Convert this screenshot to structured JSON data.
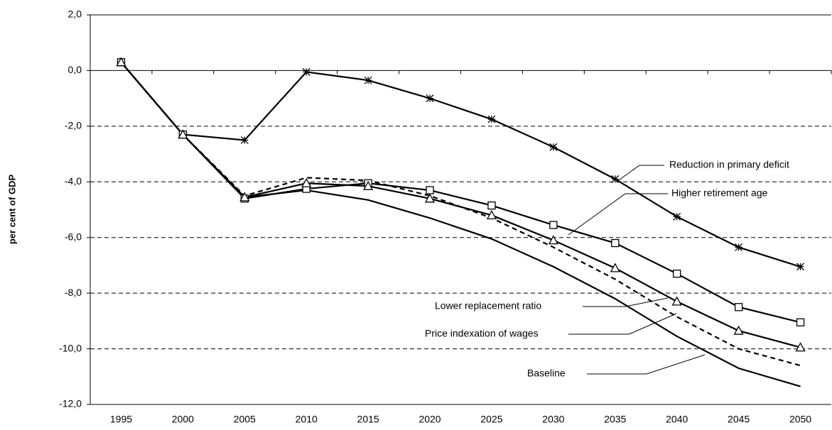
{
  "chart_data": {
    "type": "line",
    "y_label": "per cent of GDP",
    "categories": [
      "1995",
      "2000",
      "2005",
      "2010",
      "2015",
      "2020",
      "2025",
      "2030",
      "2035",
      "2040",
      "2045",
      "2050"
    ],
    "ylim": [
      -12,
      2
    ],
    "yticks": [
      {
        "value": -12,
        "label": "-12,0"
      },
      {
        "value": -10,
        "label": "-10,0"
      },
      {
        "value": -8,
        "label": "-8,0"
      },
      {
        "value": -6,
        "label": "-6,0"
      },
      {
        "value": -4,
        "label": "-4,0"
      },
      {
        "value": -2,
        "label": "-2,0"
      },
      {
        "value": 0,
        "label": "0,0"
      },
      {
        "value": 2,
        "label": "2,0"
      }
    ],
    "grid": true,
    "series": [
      {
        "name": "Reduction in primary deficit",
        "color": "#000000",
        "marker": "asterisk",
        "dashed": false,
        "values": [
          0.3,
          -2.3,
          -2.5,
          -0.05,
          -0.35,
          -1.0,
          -1.75,
          -2.75,
          -3.9,
          -5.25,
          -6.35,
          -7.05
        ]
      },
      {
        "name": "Higher retirement age",
        "color": "#000000",
        "marker": "square",
        "dashed": false,
        "values": [
          0.3,
          -2.3,
          -4.6,
          -4.25,
          -4.05,
          -4.3,
          -4.85,
          -5.55,
          -6.2,
          -7.3,
          -8.5,
          -9.05
        ]
      },
      {
        "name": "Lower replacement ratio",
        "color": "#000000",
        "marker": "triangle",
        "dashed": false,
        "values": [
          0.3,
          -2.3,
          -4.55,
          -4.05,
          -4.15,
          -4.6,
          -5.2,
          -6.1,
          -7.1,
          -8.3,
          -9.35,
          -9.95
        ]
      },
      {
        "name": "Price indexation of wages",
        "color": "#000000",
        "marker": "none",
        "dashed": true,
        "values": [
          0.3,
          -2.3,
          -4.5,
          -3.85,
          -3.95,
          -4.5,
          -5.3,
          -6.35,
          -7.5,
          -8.85,
          -10.0,
          -10.6
        ]
      },
      {
        "name": "Baseline",
        "color": "#000000",
        "marker": "none",
        "dashed": false,
        "values": [
          0.3,
          -2.3,
          -4.55,
          -4.3,
          -4.65,
          -5.3,
          -6.05,
          -7.05,
          -8.2,
          -9.55,
          -10.7,
          -11.35
        ]
      }
    ]
  }
}
